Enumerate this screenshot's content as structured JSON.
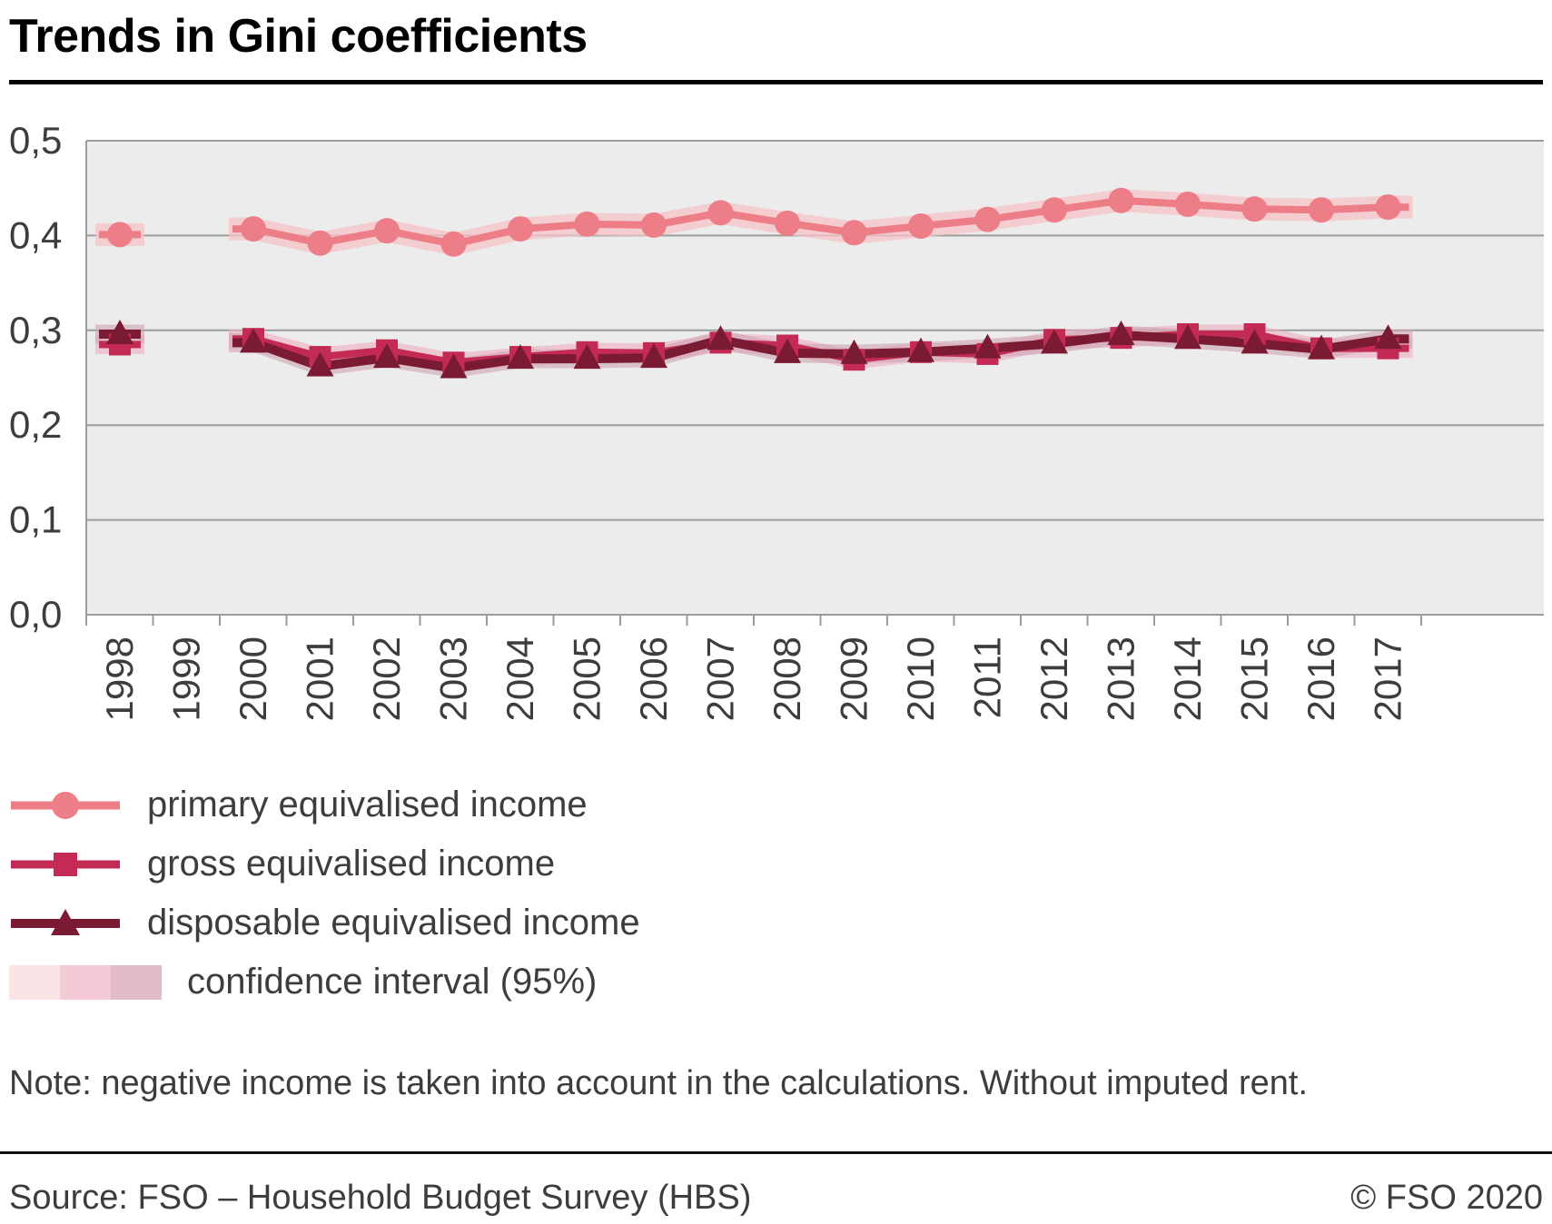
{
  "title": "Trends in Gini coefficients",
  "chart_data": {
    "type": "line",
    "title": "Trends in Gini coefficients",
    "x": [
      "1998",
      "1999",
      "2000",
      "2001",
      "2002",
      "2003",
      "2004",
      "2005",
      "2006",
      "2007",
      "2008",
      "2009",
      "2010",
      "2011",
      "2012",
      "2013",
      "2014",
      "2015",
      "2016",
      "2017"
    ],
    "ylim": [
      0.0,
      0.5
    ],
    "yticks": [
      {
        "value": 0.0,
        "label": "0,0"
      },
      {
        "value": 0.1,
        "label": "0,1"
      },
      {
        "value": 0.2,
        "label": "0,2"
      },
      {
        "value": 0.3,
        "label": "0,3"
      },
      {
        "value": 0.4,
        "label": "0,4"
      },
      {
        "value": 0.5,
        "label": "0,5"
      }
    ],
    "grid": true,
    "plot_bg": "#ececec",
    "grid_color": "#9b9b9b",
    "axis_text_color": "#3d3d3d",
    "series": [
      {
        "key": "primary",
        "name": "primary equivalised income",
        "marker": "circle",
        "color": "#ed7d87",
        "band_color": "#f6c3c7",
        "band_opacity": 0.75,
        "ci_halfwidth": 0.012,
        "values": [
          0.401,
          null,
          0.407,
          0.392,
          0.405,
          0.391,
          0.407,
          0.412,
          0.411,
          0.424,
          0.413,
          0.403,
          0.41,
          0.417,
          0.427,
          0.437,
          0.433,
          0.428,
          0.427,
          0.43
        ]
      },
      {
        "key": "gross",
        "name": "gross equivalised income",
        "marker": "square",
        "color": "#c32a54",
        "band_color": "#eeadc2",
        "band_opacity": 0.6,
        "ci_halfwidth": 0.01,
        "values": [
          0.285,
          null,
          0.291,
          0.272,
          0.279,
          0.266,
          0.272,
          0.277,
          0.276,
          0.287,
          0.284,
          0.269,
          0.277,
          0.275,
          0.29,
          0.292,
          0.296,
          0.296,
          0.281,
          0.281
        ]
      },
      {
        "key": "disposable",
        "name": "disposable equivalised income",
        "marker": "triangle",
        "color": "#7b1b33",
        "band_color": "#cfa4b2",
        "band_opacity": 0.6,
        "ci_halfwidth": 0.01,
        "values": [
          0.296,
          null,
          0.287,
          0.262,
          0.271,
          0.26,
          0.27,
          0.27,
          0.271,
          0.29,
          0.276,
          0.275,
          0.277,
          0.281,
          0.286,
          0.295,
          0.291,
          0.286,
          0.28,
          0.291
        ]
      }
    ]
  },
  "legend": {
    "ci_label": "confidence interval (95%)",
    "ci_colors": [
      "#fbe4e6",
      "#f3cad5",
      "#e3bcca"
    ]
  },
  "note": "Note: negative income is taken into account in the calculations. Without imputed rent.",
  "footer": {
    "source": "Source: FSO – Household Budget Survey (HBS)",
    "copyright": "© FSO 2020"
  }
}
